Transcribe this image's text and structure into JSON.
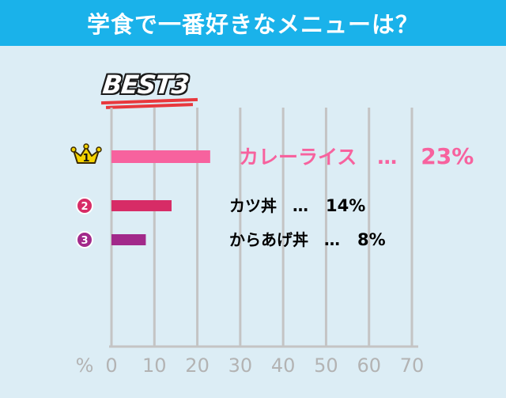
{
  "header": {
    "title": "学食で一番好きなメニューは？"
  },
  "badge": {
    "text": "BEST3"
  },
  "chart_data": {
    "type": "bar",
    "orientation": "horizontal",
    "categories": [
      "カレーライス",
      "カツ丼",
      "からあげ丼"
    ],
    "values": [
      23,
      14,
      8
    ],
    "value_labels": [
      "23%",
      "14%",
      "8%"
    ],
    "rank_labels": [
      "1",
      "2",
      "3"
    ],
    "label_separator": "…",
    "xlabel": "%",
    "xlim": [
      0,
      70
    ],
    "xticks": [
      0,
      10,
      20,
      30,
      40,
      50,
      60,
      70
    ],
    "grid": true,
    "colors": [
      "#f7629e",
      "#d72c66",
      "#a2298a"
    ],
    "crown_color": "#f5d400"
  }
}
